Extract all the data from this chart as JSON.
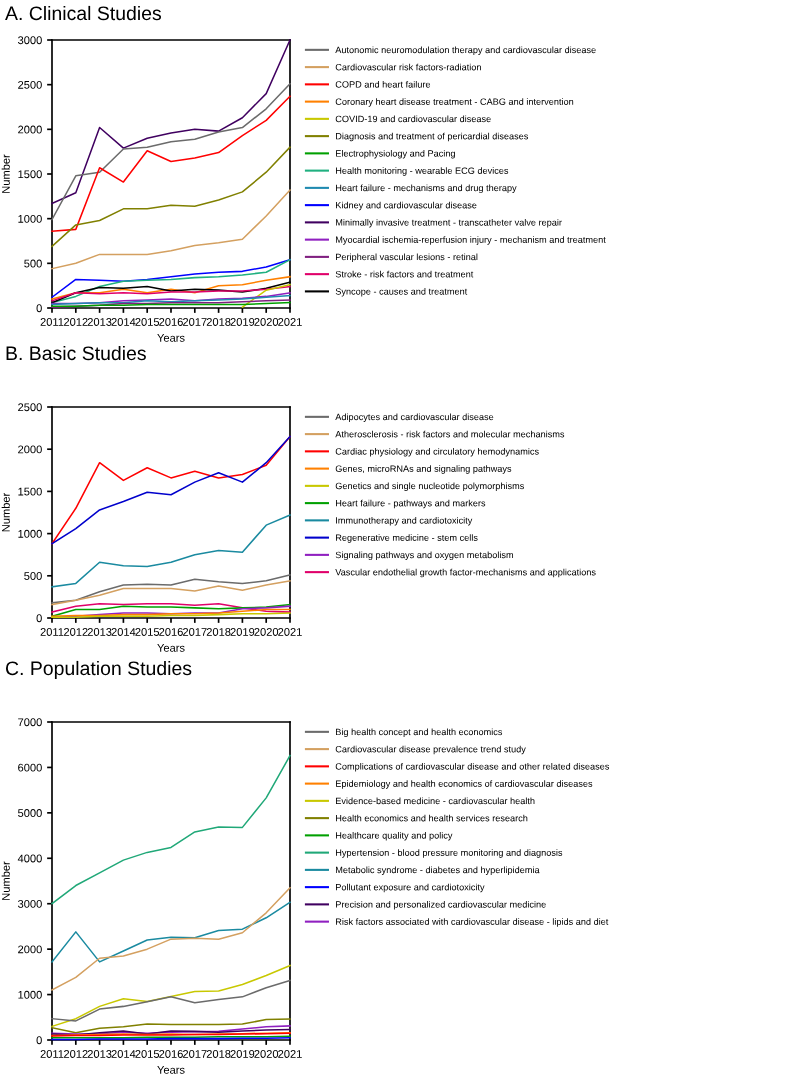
{
  "chart_data": [
    {
      "type": "line",
      "title": "A. Clinical Studies",
      "xlabel": "Years",
      "ylabel": "Number",
      "x": [
        2011,
        2012,
        2013,
        2014,
        2015,
        2016,
        2017,
        2018,
        2019,
        2020,
        2021
      ],
      "xlim": [
        2011,
        2021
      ],
      "xticks": [
        2011,
        2012,
        2013,
        2014,
        2015,
        2016,
        2017,
        2018,
        2019,
        2020,
        2021
      ],
      "ylim": [
        0,
        3000
      ],
      "yticks": [
        0,
        500,
        1000,
        1500,
        2000,
        2500,
        3000
      ],
      "grid": false,
      "legend": "right",
      "marker": "none",
      "line_style": "solid",
      "series": [
        {
          "name": "Autonomic neuromodulation therapy and cardiovascular disease",
          "color": "#6b6b6b",
          "values": [
            990,
            1480,
            1520,
            1780,
            1800,
            1860,
            1890,
            1970,
            2020,
            2230,
            2510
          ]
        },
        {
          "name": "Cardiovascular risk factors-radiation",
          "color": "#d4a060",
          "values": [
            440,
            500,
            600,
            600,
            600,
            640,
            700,
            730,
            770,
            1030,
            1320
          ]
        },
        {
          "name": "COPD and heart failure",
          "color": "#ff0000",
          "values": [
            860,
            880,
            1570,
            1410,
            1760,
            1640,
            1680,
            1740,
            1930,
            2100,
            2370
          ]
        },
        {
          "name": "Coronary heart disease treatment - CABG and intervention",
          "color": "#ff8000",
          "values": [
            100,
            170,
            170,
            210,
            170,
            210,
            170,
            250,
            260,
            310,
            350
          ]
        },
        {
          "name": "COVID-19 and cardiovascular disease",
          "color": "#c8c800",
          "values": [
            null,
            null,
            null,
            null,
            null,
            null,
            null,
            null,
            10,
            200,
            260
          ]
        },
        {
          "name": "Diagnosis and treatment of pericardial diseases",
          "color": "#808000",
          "values": [
            690,
            930,
            980,
            1110,
            1110,
            1150,
            1140,
            1210,
            1300,
            1520,
            1800
          ]
        },
        {
          "name": "Electrophysiology and Pacing",
          "color": "#00a000",
          "values": [
            20,
            20,
            30,
            30,
            40,
            40,
            40,
            40,
            40,
            50,
            60
          ]
        },
        {
          "name": "Health monitoring - wearable ECG devices",
          "color": "#20b080",
          "values": [
            60,
            130,
            240,
            300,
            310,
            320,
            340,
            350,
            370,
            400,
            540
          ]
        },
        {
          "name": "Heart failure - mechanisms and drug therapy",
          "color": "#1f8ab0",
          "values": [
            40,
            50,
            60,
            60,
            80,
            70,
            80,
            90,
            100,
            120,
            140
          ]
        },
        {
          "name": "Kidney and cardiovascular disease",
          "color": "#0000ff",
          "values": [
            120,
            320,
            310,
            300,
            320,
            350,
            380,
            400,
            410,
            460,
            540
          ]
        },
        {
          "name": "Minimally invasive treatment - transcatheter valve repair",
          "color": "#400060",
          "values": [
            1170,
            1290,
            2020,
            1790,
            1900,
            1960,
            2000,
            1980,
            2130,
            2400,
            3000
          ]
        },
        {
          "name": "Myocardial ischemia-reperfusion injury - mechanism and treatment",
          "color": "#9020c0",
          "values": [
            50,
            50,
            60,
            80,
            90,
            100,
            80,
            100,
            110,
            130,
            170
          ]
        },
        {
          "name": "Peripheral vascular lesions - retinal",
          "color": "#802080",
          "values": [
            10,
            20,
            30,
            50,
            50,
            60,
            60,
            60,
            70,
            80,
            90
          ]
        },
        {
          "name": "Stroke - risk factors and treatment",
          "color": "#e0006a",
          "values": [
            80,
            170,
            160,
            170,
            160,
            180,
            180,
            190,
            190,
            210,
            240
          ]
        },
        {
          "name": "Syncope - causes and treatment",
          "color": "#000000",
          "values": [
            60,
            170,
            230,
            220,
            240,
            190,
            210,
            200,
            180,
            220,
            290
          ]
        }
      ]
    },
    {
      "type": "line",
      "title": "B. Basic Studies",
      "xlabel": "Years",
      "ylabel": "Number",
      "x": [
        2011,
        2012,
        2013,
        2014,
        2015,
        2016,
        2017,
        2018,
        2019,
        2020,
        2021
      ],
      "xlim": [
        2011,
        2021
      ],
      "xticks": [
        2011,
        2012,
        2013,
        2014,
        2015,
        2016,
        2017,
        2018,
        2019,
        2020,
        2021
      ],
      "ylim": [
        0,
        2500
      ],
      "yticks": [
        0,
        500,
        1000,
        1500,
        2000,
        2500
      ],
      "grid": false,
      "legend": "right",
      "marker": "none",
      "line_style": "solid",
      "series": [
        {
          "name": "Adipocytes and cardiovascular disease",
          "color": "#6b6b6b",
          "values": [
            180,
            210,
            310,
            390,
            400,
            390,
            460,
            430,
            410,
            440,
            510
          ]
        },
        {
          "name": "Atherosclerosis - risk factors and molecular mechanisms",
          "color": "#d4a060",
          "values": [
            160,
            210,
            270,
            350,
            350,
            350,
            320,
            380,
            330,
            390,
            440
          ]
        },
        {
          "name": "Cardiac physiology and circulatory hemodynamics",
          "color": "#ff0000",
          "values": [
            880,
            1300,
            1840,
            1630,
            1780,
            1660,
            1740,
            1660,
            1700,
            1810,
            2150
          ]
        },
        {
          "name": "Genes, microRNAs and signaling pathways",
          "color": "#ff8000",
          "values": [
            20,
            30,
            30,
            40,
            40,
            50,
            50,
            60,
            80,
            100,
            100
          ]
        },
        {
          "name": "Genetics and single nucleotide polymorphisms",
          "color": "#c8c800",
          "values": [
            10,
            10,
            20,
            20,
            20,
            30,
            30,
            40,
            50,
            50,
            60
          ]
        },
        {
          "name": "Heart failure - pathways and markers",
          "color": "#00a000",
          "values": [
            20,
            100,
            100,
            140,
            130,
            130,
            120,
            110,
            120,
            130,
            160
          ]
        },
        {
          "name": "Immunotherapy and cardiotoxicity",
          "color": "#1a8aa0",
          "values": [
            370,
            410,
            660,
            620,
            610,
            660,
            750,
            800,
            780,
            1100,
            1220
          ]
        },
        {
          "name": "Regenerative medicine - stem cells",
          "color": "#0000cc",
          "values": [
            880,
            1060,
            1280,
            1380,
            1490,
            1460,
            1610,
            1720,
            1610,
            1840,
            2150
          ]
        },
        {
          "name": "Signaling pathways and oxygen metabolism",
          "color": "#9020c0",
          "values": [
            10,
            20,
            40,
            60,
            60,
            50,
            60,
            60,
            110,
            120,
            140
          ]
        },
        {
          "name": "Vascular endothelial growth factor-mechanisms and applications",
          "color": "#e0006a",
          "values": [
            70,
            140,
            170,
            160,
            170,
            170,
            150,
            170,
            120,
            80,
            70
          ]
        }
      ]
    },
    {
      "type": "line",
      "title": "C. Population Studies",
      "xlabel": "Years",
      "ylabel": "Number",
      "x": [
        2011,
        2012,
        2013,
        2014,
        2015,
        2016,
        2017,
        2018,
        2019,
        2020,
        2021
      ],
      "xlim": [
        2011,
        2021
      ],
      "xticks": [
        2011,
        2012,
        2013,
        2014,
        2015,
        2016,
        2017,
        2018,
        2019,
        2020,
        2021
      ],
      "ylim": [
        0,
        7000
      ],
      "yticks": [
        0,
        1000,
        2000,
        3000,
        4000,
        5000,
        6000,
        7000
      ],
      "grid": false,
      "legend": "right",
      "marker": "none",
      "line_style": "solid",
      "series": [
        {
          "name": "Big health concept and health economics",
          "color": "#6b6b6b",
          "values": [
            470,
            420,
            680,
            740,
            840,
            950,
            820,
            890,
            950,
            1150,
            1310
          ]
        },
        {
          "name": "Cardiovascular disease prevalence trend study",
          "color": "#d4a060",
          "values": [
            1100,
            1380,
            1800,
            1850,
            2000,
            2220,
            2240,
            2220,
            2360,
            2800,
            3350
          ]
        },
        {
          "name": "Complications of cardiovascular disease and other related diseases",
          "color": "#ff0000",
          "values": [
            90,
            100,
            100,
            110,
            110,
            110,
            120,
            120,
            130,
            140,
            150
          ]
        },
        {
          "name": "Epidemiology and health economics of cardiovascular diseases",
          "color": "#ff8000",
          "values": [
            100,
            110,
            120,
            130,
            120,
            130,
            120,
            130,
            140,
            150,
            160
          ]
        },
        {
          "name": "Evidence-based medicine - cardiovascular health",
          "color": "#c8c800",
          "values": [
            300,
            470,
            740,
            910,
            850,
            960,
            1070,
            1080,
            1220,
            1420,
            1640
          ]
        },
        {
          "name": "Health economics and health services research",
          "color": "#808000",
          "values": [
            270,
            160,
            260,
            290,
            350,
            340,
            340,
            340,
            350,
            450,
            460
          ]
        },
        {
          "name": "Healthcare quality and policy",
          "color": "#00a000",
          "values": [
            50,
            50,
            50,
            50,
            60,
            60,
            60,
            70,
            70,
            70,
            80
          ]
        },
        {
          "name": "Hypertension - blood pressure monitoring and diagnosis",
          "color": "#20a878",
          "values": [
            3000,
            3400,
            3680,
            3960,
            4130,
            4240,
            4580,
            4690,
            4680,
            5330,
            6260
          ]
        },
        {
          "name": "Metabolic syndrome - diabetes and hyperlipidemia",
          "color": "#1a8aa0",
          "values": [
            1720,
            2380,
            1720,
            1960,
            2200,
            2260,
            2250,
            2410,
            2440,
            2690,
            3030
          ]
        },
        {
          "name": "Pollutant exposure and cardiotoxicity",
          "color": "#0000ff",
          "values": [
            10,
            10,
            20,
            20,
            20,
            30,
            30,
            30,
            40,
            40,
            50
          ]
        },
        {
          "name": "Precision and personalized cardiovascular medicine",
          "color": "#400060",
          "values": [
            130,
            110,
            160,
            200,
            130,
            200,
            190,
            170,
            200,
            220,
            230
          ]
        },
        {
          "name": "Risk factors associated with cardiovascular disease - lipids and diet",
          "color": "#9020c0",
          "values": [
            150,
            130,
            140,
            170,
            150,
            170,
            180,
            190,
            240,
            290,
            310
          ]
        }
      ]
    }
  ]
}
